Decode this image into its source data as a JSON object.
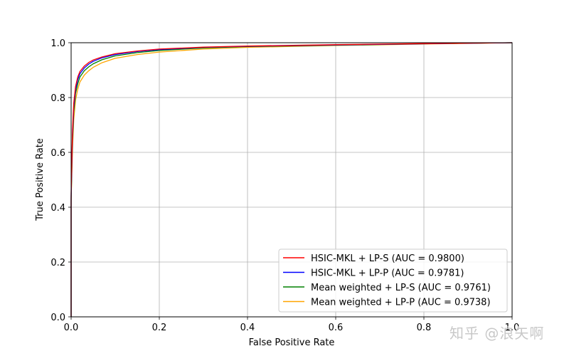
{
  "chart_data": {
    "type": "line",
    "title": "",
    "xlabel": "False Positive Rate",
    "ylabel": "True Positive Rate",
    "xlim": [
      0.0,
      1.0
    ],
    "ylim": [
      0.0,
      1.0
    ],
    "grid": true,
    "legend_position": "lower right",
    "x_ticks": [
      "0.0",
      "0.2",
      "0.4",
      "0.6",
      "0.8",
      "1.0"
    ],
    "y_ticks": [
      "0.0",
      "0.2",
      "0.4",
      "0.6",
      "0.8",
      "1.0"
    ],
    "series": [
      {
        "name": "HSIC-MKL + LP-S (AUC = 0.9800)",
        "color": "#ff0000",
        "x": [
          0.0,
          0.0,
          0.003,
          0.006,
          0.01,
          0.015,
          0.02,
          0.03,
          0.04,
          0.05,
          0.07,
          0.1,
          0.15,
          0.2,
          0.3,
          0.4,
          0.6,
          0.8,
          1.0
        ],
        "y": [
          0.0,
          0.45,
          0.68,
          0.78,
          0.84,
          0.875,
          0.895,
          0.915,
          0.928,
          0.937,
          0.948,
          0.96,
          0.97,
          0.977,
          0.984,
          0.988,
          0.993,
          0.997,
          1.0
        ]
      },
      {
        "name": "HSIC-MKL + LP-P (AUC = 0.9781)",
        "color": "#0000ff",
        "x": [
          0.0,
          0.0,
          0.003,
          0.006,
          0.01,
          0.015,
          0.02,
          0.03,
          0.04,
          0.05,
          0.07,
          0.1,
          0.15,
          0.2,
          0.3,
          0.4,
          0.6,
          0.8,
          1.0
        ],
        "y": [
          0.0,
          0.44,
          0.66,
          0.765,
          0.83,
          0.865,
          0.887,
          0.908,
          0.922,
          0.932,
          0.945,
          0.957,
          0.968,
          0.975,
          0.983,
          0.987,
          0.992,
          0.996,
          1.0
        ]
      },
      {
        "name": "Mean weighted + LP-S (AUC = 0.9761)",
        "color": "#008000",
        "x": [
          0.0,
          0.0,
          0.003,
          0.006,
          0.01,
          0.015,
          0.02,
          0.03,
          0.04,
          0.05,
          0.07,
          0.1,
          0.15,
          0.2,
          0.3,
          0.4,
          0.6,
          0.8,
          1.0
        ],
        "y": [
          0.0,
          0.43,
          0.64,
          0.75,
          0.815,
          0.85,
          0.875,
          0.898,
          0.912,
          0.923,
          0.938,
          0.952,
          0.964,
          0.972,
          0.981,
          0.986,
          0.991,
          0.996,
          1.0
        ]
      },
      {
        "name": "Mean weighted + LP-P (AUC = 0.9738)",
        "color": "#ffa500",
        "x": [
          0.0,
          0.0,
          0.003,
          0.006,
          0.01,
          0.015,
          0.02,
          0.03,
          0.04,
          0.05,
          0.07,
          0.1,
          0.15,
          0.2,
          0.3,
          0.4,
          0.6,
          0.8,
          1.0
        ],
        "y": [
          0.0,
          0.42,
          0.61,
          0.72,
          0.79,
          0.83,
          0.857,
          0.882,
          0.898,
          0.91,
          0.927,
          0.943,
          0.957,
          0.966,
          0.977,
          0.983,
          0.99,
          0.995,
          1.0
        ]
      }
    ]
  },
  "watermark": "知乎 @浪矢啊"
}
